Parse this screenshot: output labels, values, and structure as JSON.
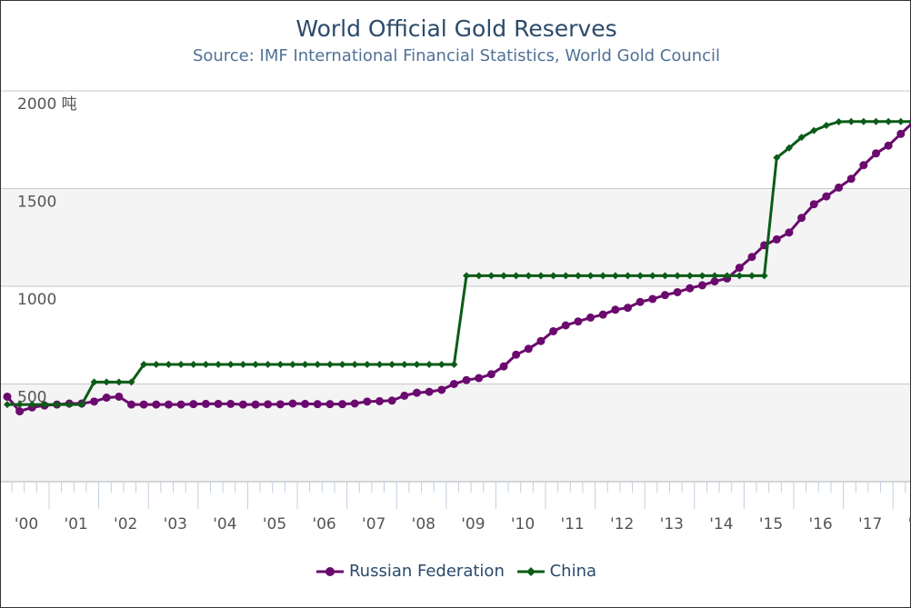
{
  "chart_data": {
    "type": "line",
    "title": "World Official Gold Reserves",
    "subtitle": "Source: IMF International Financial Statistics, World Gold Council",
    "xlabel": "",
    "ylabel": "",
    "y_ticks": [
      {
        "value": 2000,
        "label": "2000 吨"
      },
      {
        "value": 1500,
        "label": "1500"
      },
      {
        "value": 1000,
        "label": "1000"
      },
      {
        "value": 500,
        "label": "500"
      }
    ],
    "ylim": [
      0,
      2000
    ],
    "x_ticks": [
      "'00",
      "'01",
      "'02",
      "'03",
      "'04",
      "'05",
      "'06",
      "'07",
      "'08",
      "'09",
      "'10",
      "'11",
      "'12",
      "'13",
      "'14",
      "'15",
      "'16",
      "'17",
      "'18"
    ],
    "x_start_year": 2000,
    "x_step_years": 0.25,
    "grid": true,
    "alternating_bands": true,
    "legend_position": "bottom-center",
    "series": [
      {
        "name": "Russian Federation",
        "color": "#6b0a6e",
        "marker": "circle",
        "values": [
          435,
          360,
          380,
          390,
          395,
          400,
          400,
          410,
          430,
          435,
          395,
          395,
          395,
          395,
          395,
          397,
          398,
          398,
          398,
          395,
          395,
          396,
          396,
          400,
          398,
          397,
          397,
          397,
          400,
          410,
          412,
          415,
          440,
          455,
          460,
          470,
          500,
          520,
          530,
          550,
          590,
          650,
          680,
          720,
          770,
          800,
          820,
          840,
          855,
          880,
          890,
          920,
          935,
          955,
          970,
          990,
          1005,
          1025,
          1040,
          1095,
          1150,
          1210,
          1240,
          1275,
          1350,
          1420,
          1460,
          1505,
          1550,
          1620,
          1680,
          1720,
          1780,
          1840,
          1890
        ]
      },
      {
        "name": "China",
        "color": "#0b5c18",
        "marker": "diamond",
        "values": [
          395,
          395,
          395,
          395,
          395,
          395,
          395,
          510,
          510,
          510,
          510,
          600,
          600,
          600,
          600,
          600,
          600,
          600,
          600,
          600,
          600,
          600,
          600,
          600,
          600,
          600,
          600,
          600,
          600,
          600,
          600,
          600,
          600,
          600,
          600,
          600,
          600,
          1054,
          1054,
          1054,
          1054,
          1054,
          1054,
          1054,
          1054,
          1054,
          1054,
          1054,
          1054,
          1054,
          1054,
          1054,
          1054,
          1054,
          1054,
          1054,
          1054,
          1054,
          1054,
          1054,
          1054,
          1054,
          1658,
          1708,
          1762,
          1797,
          1823,
          1842,
          1843,
          1843,
          1843,
          1843,
          1843,
          1843,
          1843
        ]
      }
    ]
  }
}
